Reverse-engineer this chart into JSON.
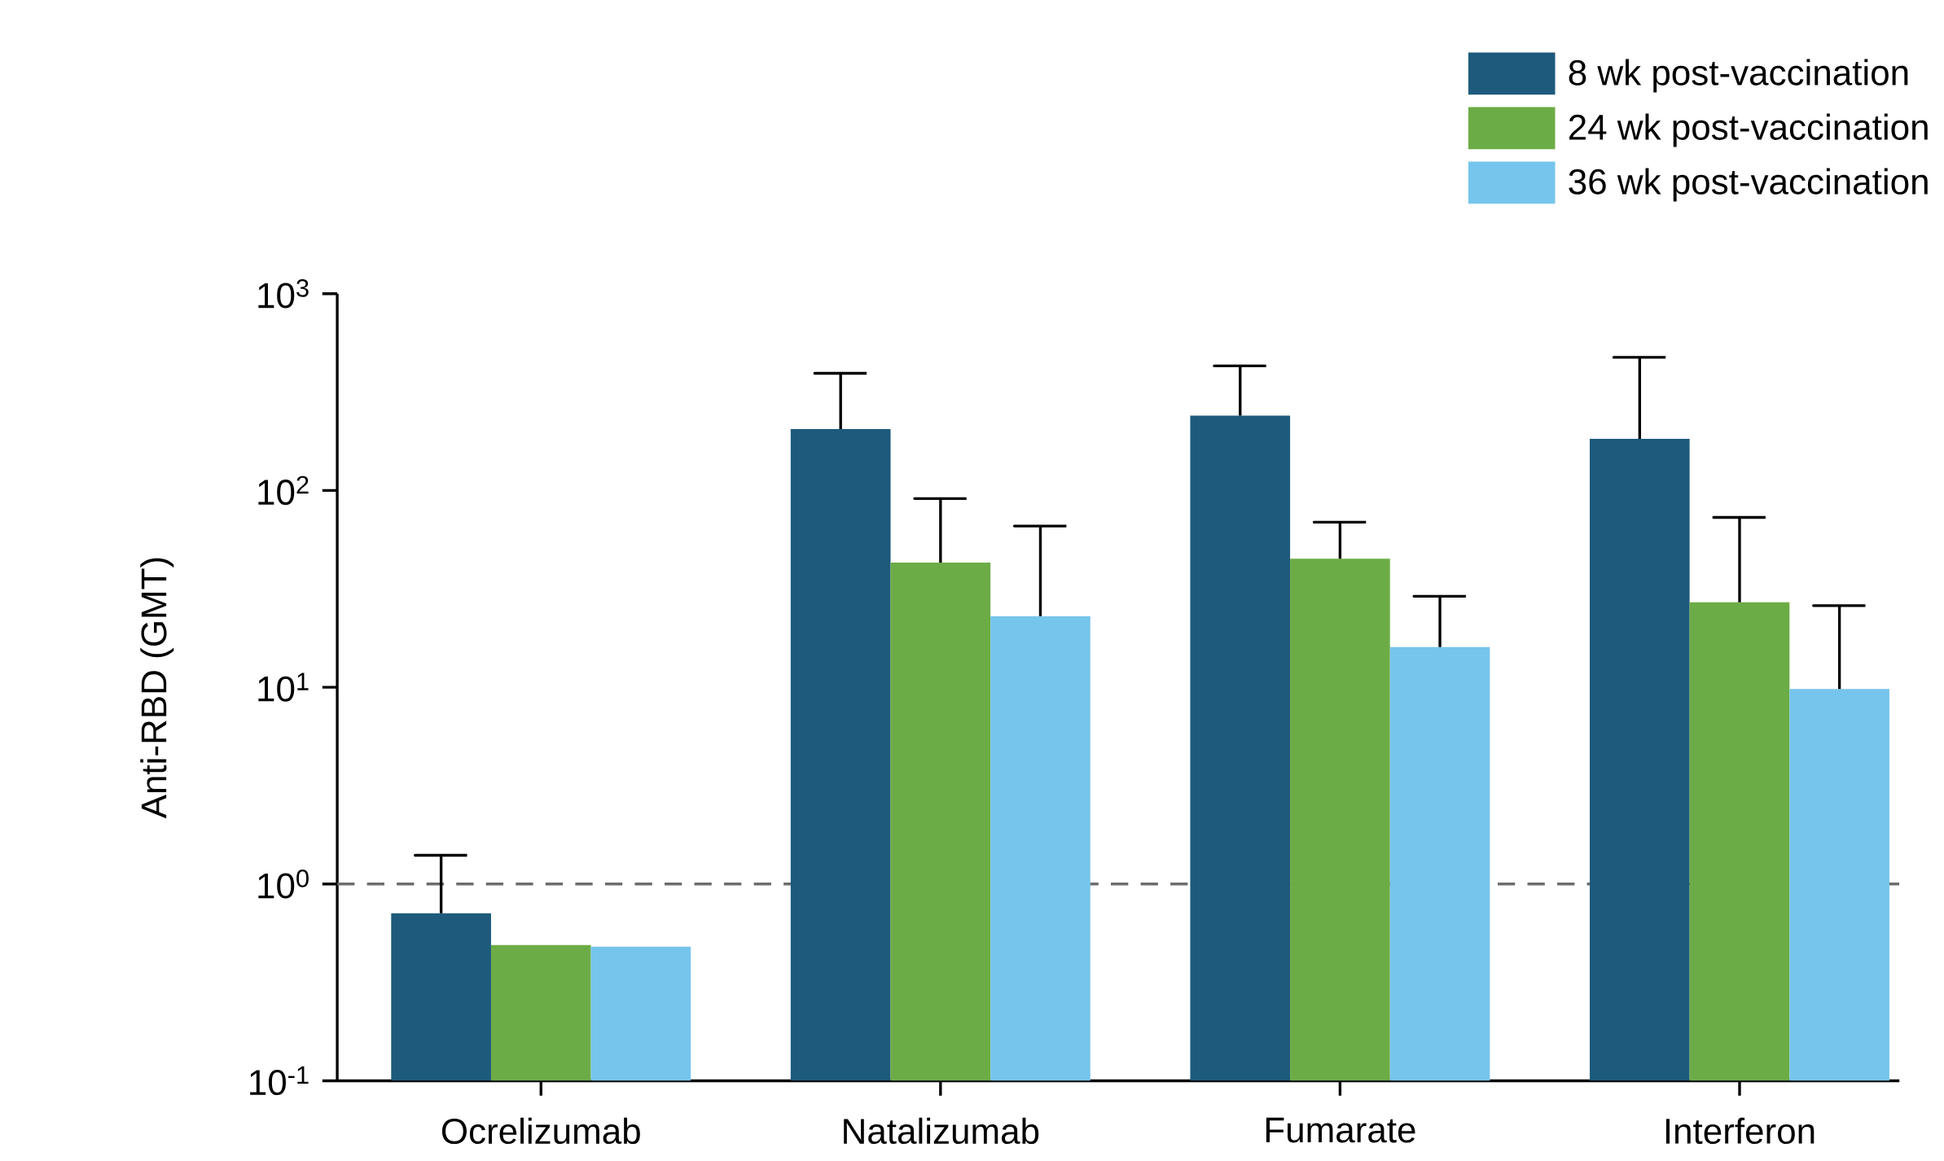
{
  "chart_data": {
    "type": "bar",
    "ylabel": "Anti-RBD (GMT)",
    "log": "y",
    "legend": "top right",
    "categories": [
      "Ocrelizumab",
      "Natalizumab",
      "Fumarate",
      "Interferon"
    ],
    "ylim": [
      0.1,
      1000
    ],
    "yticks": [
      {
        "value": 0.1,
        "label": "10$^{-1}$"
      },
      {
        "value": 1,
        "label": "10$^{0}$"
      },
      {
        "value": 10,
        "label": "10$^{1}$"
      },
      {
        "value": 100,
        "label": "10$^{2}$"
      },
      {
        "value": 1000,
        "label": "10$^{3}$"
      }
    ],
    "series": [
      {
        "name": "8 wk post-vaccination",
        "color": "#1d5a7c",
        "values": [
          0.71,
          205,
          240,
          183
        ],
        "errors": [
          [
            0.71,
            1.4
          ],
          [
            205,
            394
          ],
          [
            240,
            430
          ],
          [
            183,
            475
          ]
        ]
      },
      {
        "name": "24 wk post-vaccination",
        "color": "#6cac46",
        "values": [
          0.49,
          43,
          45,
          27
        ],
        "errors": [
          null,
          [
            43,
            91
          ],
          [
            45,
            69
          ],
          [
            27,
            73
          ]
        ]
      },
      {
        "name": "36 wk post-vaccination",
        "color": "#76c5ec",
        "values": [
          0.48,
          23,
          16,
          9.8
        ],
        "errors": [
          null,
          [
            23,
            66
          ],
          [
            16,
            29
          ],
          [
            9.8,
            26
          ]
        ]
      }
    ],
    "ref_lines": [
      {
        "axis": "y",
        "value": 1,
        "color": "#6d6d6d",
        "line_style": "dashed"
      }
    ]
  }
}
